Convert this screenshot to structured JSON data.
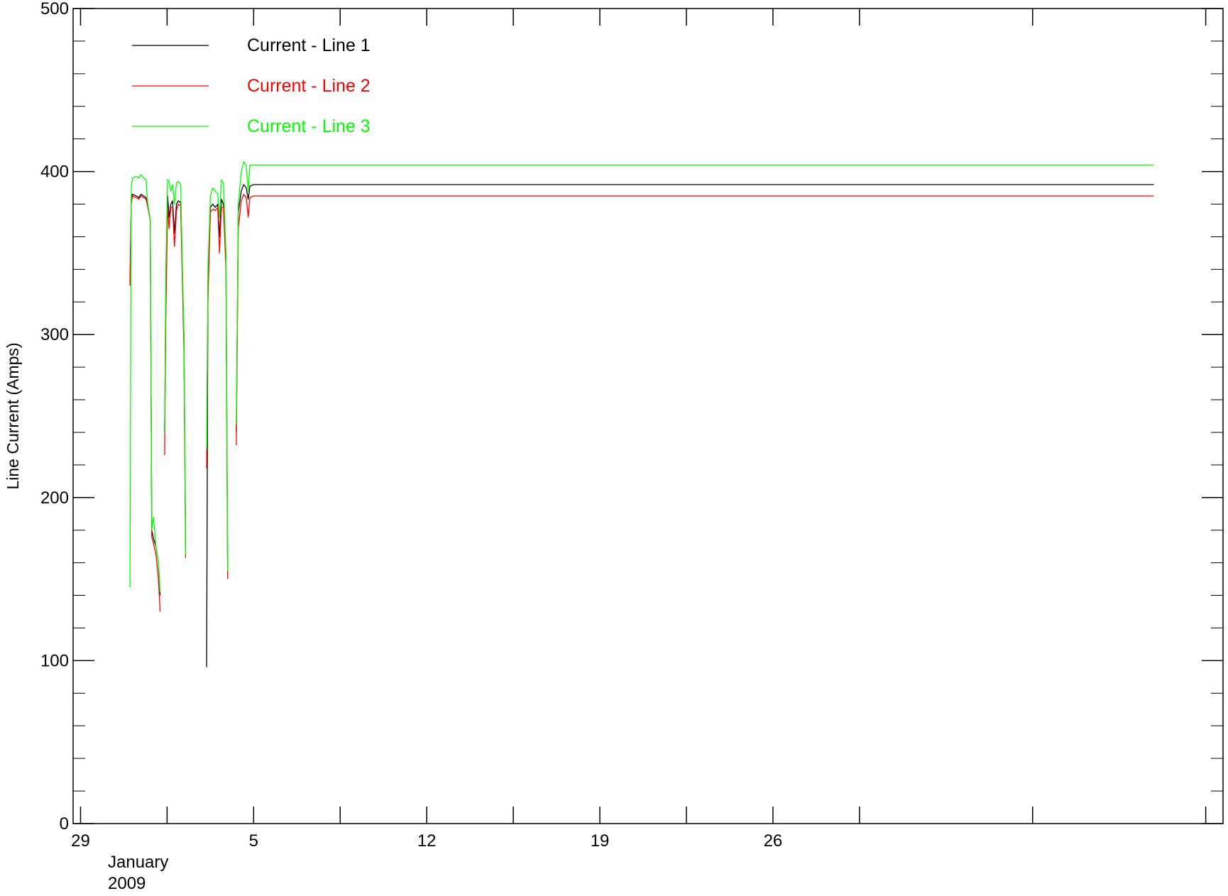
{
  "chart_data": {
    "type": "line",
    "title": "",
    "xlabel": "",
    "ylabel": "Line Current (Amps)",
    "ylim": [
      0,
      500
    ],
    "y_ticks": [
      0,
      100,
      200,
      300,
      400,
      500
    ],
    "xlim": [
      -0.3,
      46.2
    ],
    "x_ticks": [
      {
        "x": 0,
        "label": "29"
      },
      {
        "x": 7,
        "label": "5"
      },
      {
        "x": 14,
        "label": "12"
      },
      {
        "x": 21,
        "label": "19"
      },
      {
        "x": 28,
        "label": "26"
      }
    ],
    "x_axis_sublabels": [
      "January",
      "2009"
    ],
    "grid": false,
    "legend_position": "top-left",
    "series": [
      {
        "name": "Current - Line 1",
        "color": "#000000",
        "segments": [
          [
            [
              2.0,
              330
            ],
            [
              2.05,
              383
            ],
            [
              2.1,
              386
            ],
            [
              2.25,
              385
            ],
            [
              2.35,
              384
            ],
            [
              2.45,
              386
            ],
            [
              2.55,
              385
            ],
            [
              2.65,
              384
            ],
            [
              2.72,
              380
            ],
            [
              2.82,
              370
            ],
            [
              2.88,
              180
            ],
            [
              2.95,
              175
            ],
            [
              3.05,
              170
            ],
            [
              3.15,
              160
            ],
            [
              3.22,
              140
            ]
          ],
          [
            [
              3.4,
              240
            ],
            [
              3.45,
              320
            ],
            [
              3.52,
              385
            ],
            [
              3.58,
              372
            ],
            [
              3.65,
              380
            ],
            [
              3.72,
              382
            ],
            [
              3.8,
              362
            ],
            [
              3.88,
              380
            ],
            [
              3.95,
              382
            ],
            [
              4.05,
              381
            ],
            [
              4.18,
              300
            ],
            [
              4.25,
              170
            ]
          ],
          [
            [
              5.1,
              96
            ],
            [
              5.15,
              330
            ],
            [
              5.25,
              378
            ],
            [
              5.35,
              380
            ],
            [
              5.45,
              378
            ],
            [
              5.55,
              380
            ],
            [
              5.62,
              360
            ],
            [
              5.7,
              383
            ],
            [
              5.78,
              380
            ],
            [
              5.88,
              350
            ],
            [
              5.95,
              155
            ]
          ],
          [
            [
              6.3,
              240
            ],
            [
              6.38,
              375
            ],
            [
              6.5,
              388
            ],
            [
              6.6,
              392
            ],
            [
              6.7,
              390
            ],
            [
              6.78,
              383
            ],
            [
              6.85,
              391
            ],
            [
              7.0,
              392
            ],
            [
              10.0,
              392
            ],
            [
              20.0,
              392
            ],
            [
              30.0,
              392
            ],
            [
              43.4,
              392
            ]
          ]
        ]
      },
      {
        "name": "Current - Line 2",
        "color": "#ff0000",
        "segments": [
          [
            [
              2.0,
              330
            ],
            [
              2.05,
              380
            ],
            [
              2.1,
              385
            ],
            [
              2.25,
              384
            ],
            [
              2.35,
              383
            ],
            [
              2.45,
              385
            ],
            [
              2.55,
              384
            ],
            [
              2.65,
              383
            ],
            [
              2.72,
              378
            ],
            [
              2.82,
              370
            ],
            [
              2.88,
              176
            ],
            [
              2.95,
              172
            ],
            [
              3.05,
              165
            ],
            [
              3.15,
              150
            ],
            [
              3.22,
              130
            ]
          ],
          [
            [
              3.4,
              226
            ],
            [
              3.45,
              310
            ],
            [
              3.52,
              378
            ],
            [
              3.58,
              365
            ],
            [
              3.65,
              378
            ],
            [
              3.72,
              378
            ],
            [
              3.8,
              354
            ],
            [
              3.88,
              376
            ],
            [
              3.95,
              380
            ],
            [
              4.05,
              379
            ],
            [
              4.18,
              290
            ],
            [
              4.25,
              163
            ]
          ],
          [
            [
              5.1,
              218
            ],
            [
              5.15,
              320
            ],
            [
              5.25,
              375
            ],
            [
              5.35,
              377
            ],
            [
              5.45,
              376
            ],
            [
              5.55,
              378
            ],
            [
              5.62,
              350
            ],
            [
              5.7,
              378
            ],
            [
              5.78,
              378
            ],
            [
              5.88,
              340
            ],
            [
              5.95,
              150
            ]
          ],
          [
            [
              6.3,
              232
            ],
            [
              6.38,
              365
            ],
            [
              6.5,
              382
            ],
            [
              6.6,
              386
            ],
            [
              6.7,
              384
            ],
            [
              6.78,
              372
            ],
            [
              6.85,
              384
            ],
            [
              7.0,
              385
            ],
            [
              10.0,
              385
            ],
            [
              20.0,
              385
            ],
            [
              30.0,
              385
            ],
            [
              43.4,
              385
            ]
          ]
        ]
      },
      {
        "name": "Current - Line 3",
        "color": "#00ff00",
        "segments": [
          [
            [
              2.0,
              145
            ],
            [
              2.05,
              390
            ],
            [
              2.1,
              396
            ],
            [
              2.25,
              397
            ],
            [
              2.35,
              396
            ],
            [
              2.45,
              398
            ],
            [
              2.55,
              396
            ],
            [
              2.65,
              395
            ],
            [
              2.72,
              380
            ],
            [
              2.82,
              370
            ],
            [
              2.88,
              180
            ],
            [
              2.95,
              188
            ],
            [
              3.05,
              170
            ],
            [
              3.15,
              160
            ],
            [
              3.22,
              142
            ]
          ],
          [
            [
              3.4,
              240
            ],
            [
              3.45,
              340
            ],
            [
              3.52,
              395
            ],
            [
              3.58,
              394
            ],
            [
              3.65,
              388
            ],
            [
              3.72,
              392
            ],
            [
              3.8,
              380
            ],
            [
              3.88,
              393
            ],
            [
              3.95,
              394
            ],
            [
              4.05,
              392
            ],
            [
              4.18,
              300
            ],
            [
              4.25,
              165
            ]
          ],
          [
            [
              5.1,
              230
            ],
            [
              5.15,
              340
            ],
            [
              5.25,
              385
            ],
            [
              5.35,
              390
            ],
            [
              5.45,
              388
            ],
            [
              5.55,
              386
            ],
            [
              5.62,
              372
            ],
            [
              5.7,
              395
            ],
            [
              5.78,
              393
            ],
            [
              5.88,
              350
            ],
            [
              5.95,
              155
            ]
          ],
          [
            [
              6.3,
              245
            ],
            [
              6.38,
              380
            ],
            [
              6.5,
              400
            ],
            [
              6.6,
              406
            ],
            [
              6.7,
              404
            ],
            [
              6.78,
              388
            ],
            [
              6.85,
              404
            ],
            [
              7.0,
              404
            ],
            [
              10.0,
              404
            ],
            [
              20.0,
              404
            ],
            [
              30.0,
              404
            ],
            [
              43.4,
              404
            ]
          ]
        ]
      }
    ]
  }
}
